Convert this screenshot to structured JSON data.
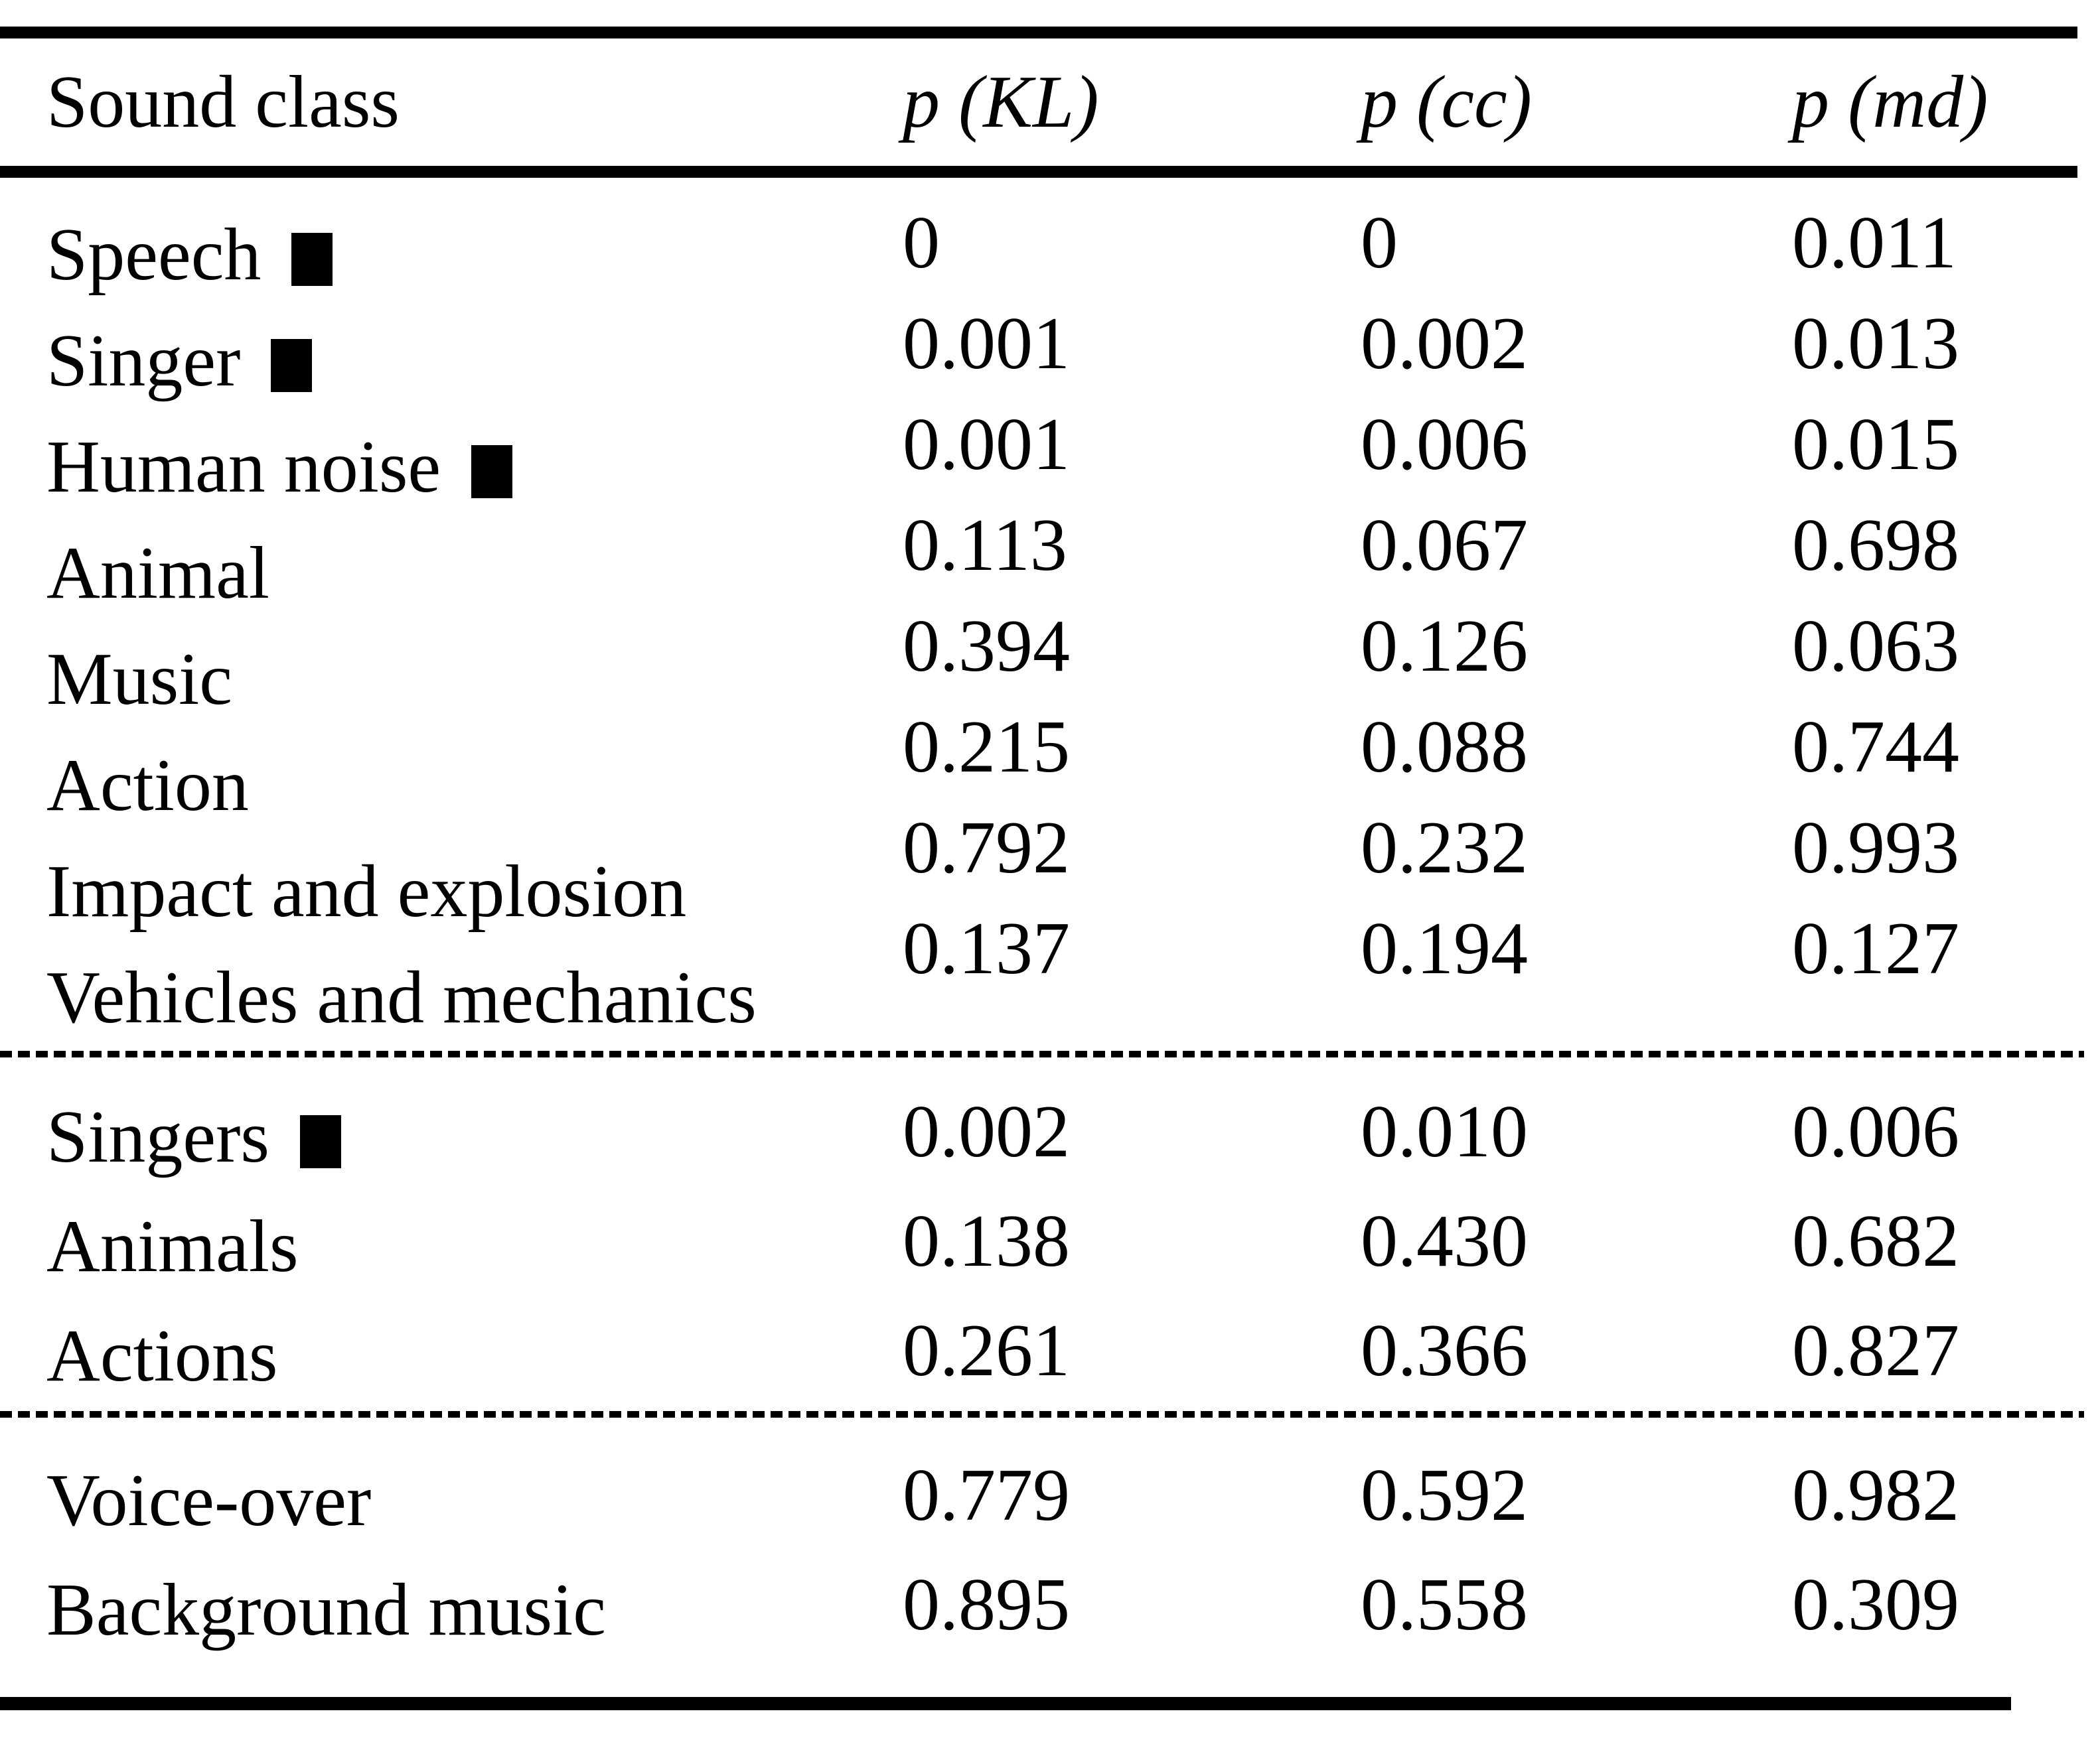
{
  "table": {
    "colors": {
      "text": "#000000",
      "background": "#ffffff",
      "rule": "#000000"
    },
    "marker_icon": "black-square",
    "columns": [
      "Sound class",
      "p (KL)",
      "p (cc)",
      "p (md)"
    ],
    "sections": [
      {
        "rows": [
          {
            "label": "Speech",
            "marked": true,
            "values": [
              "0",
              "0",
              "0.011"
            ]
          },
          {
            "label": "Singer",
            "marked": true,
            "values": [
              "0.001",
              "0.002",
              "0.013"
            ]
          },
          {
            "label": "Human noise",
            "marked": true,
            "values": [
              "0.001",
              "0.006",
              "0.015"
            ]
          },
          {
            "label": "Animal",
            "marked": false,
            "values": [
              "0.113",
              "0.067",
              "0.698"
            ]
          },
          {
            "label": "Music",
            "marked": false,
            "values": [
              "0.394",
              "0.126",
              "0.063"
            ]
          },
          {
            "label": "Action",
            "marked": false,
            "values": [
              "0.215",
              "0.088",
              "0.744"
            ]
          },
          {
            "label": "Impact and explosion",
            "marked": false,
            "values": [
              "0.792",
              "0.232",
              "0.993"
            ]
          },
          {
            "label": "Vehicles and mechanics",
            "marked": false,
            "values": [
              "0.137",
              "0.194",
              "0.127"
            ]
          }
        ]
      },
      {
        "rows": [
          {
            "label": "Singers",
            "marked": true,
            "values": [
              "0.002",
              "0.010",
              "0.006"
            ]
          },
          {
            "label": "Animals",
            "marked": false,
            "values": [
              "0.138",
              "0.430",
              "0.682"
            ]
          },
          {
            "label": "Actions",
            "marked": false,
            "values": [
              "0.261",
              "0.366",
              "0.827"
            ]
          }
        ]
      },
      {
        "rows": [
          {
            "label": "Voice-over",
            "marked": false,
            "values": [
              "0.779",
              "0.592",
              "0.982"
            ]
          },
          {
            "label": "Background music",
            "marked": false,
            "values": [
              "0.895",
              "0.558",
              "0.309"
            ]
          }
        ]
      }
    ]
  }
}
